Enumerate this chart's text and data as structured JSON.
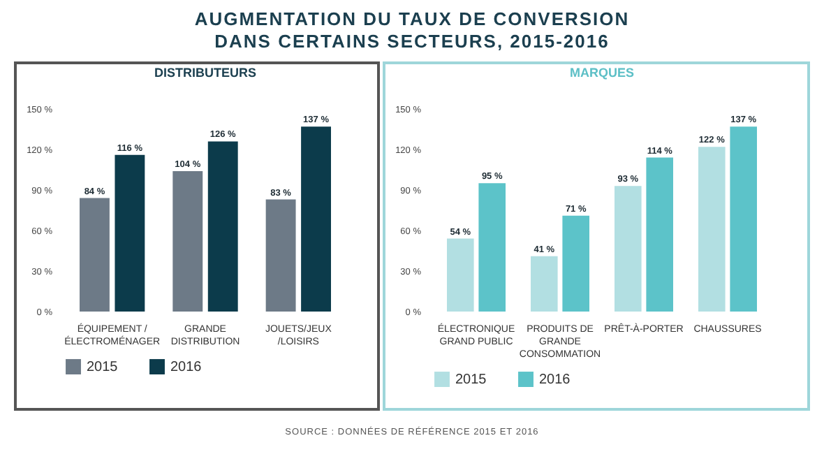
{
  "chart_data": [
    {
      "type": "bar",
      "title": "AUGMENTATION DU TAUX DE CONVERSION\nDANS CERTAINS SECTEURS, 2015-2016",
      "subtitle": "DISTRIBUTEURS",
      "categories": [
        "ÉQUIPEMENT /\nÉLECTROMÉNAGER",
        "GRANDE\nDISTRIBUTION",
        "JOUETS/JEUX\n/LOISIRS"
      ],
      "series": [
        {
          "name": "2015",
          "color": "#6d7a87",
          "values": [
            84,
            104,
            83
          ],
          "value_labels": [
            "84 %",
            "104 %",
            "83 %"
          ]
        },
        {
          "name": "2016",
          "color": "#0c3b4b",
          "values": [
            116,
            126,
            137
          ],
          "value_labels": [
            "116 %",
            "126 %",
            "137 %"
          ]
        }
      ],
      "ylim": [
        0,
        150
      ],
      "yticks": [
        {
          "value": 0,
          "label": "0 %"
        },
        {
          "value": 30,
          "label": "30 %"
        },
        {
          "value": 60,
          "label": "60 %"
        },
        {
          "value": 90,
          "label": "90 %"
        },
        {
          "value": 120,
          "label": "120 %"
        },
        {
          "value": 150,
          "label": "150 %"
        }
      ],
      "legend": "bottom",
      "grid": false
    },
    {
      "type": "bar",
      "subtitle": "MARQUES",
      "categories": [
        "ÉLECTRONIQUE\nGRAND PUBLIC",
        "PRODUITS DE\nGRANDE\nCONSOMMATION",
        "PRÊT-À-PORTER",
        "CHAUSSURES"
      ],
      "series": [
        {
          "name": "2015",
          "color": "#b2dfe2",
          "values": [
            54,
            41,
            93,
            122
          ],
          "value_labels": [
            "54 %",
            "41 %",
            "93 %",
            "122 %"
          ]
        },
        {
          "name": "2016",
          "color": "#5cc3c9",
          "values": [
            95,
            71,
            114,
            137
          ],
          "value_labels": [
            "95 %",
            "71 %",
            "114 %",
            "137 %"
          ]
        }
      ],
      "ylim": [
        0,
        150
      ],
      "yticks": [
        {
          "value": 0,
          "label": "0 %"
        },
        {
          "value": 30,
          "label": "30 %"
        },
        {
          "value": 60,
          "label": "60 %"
        },
        {
          "value": 90,
          "label": "90 %"
        },
        {
          "value": 120,
          "label": "120 %"
        },
        {
          "value": 150,
          "label": "150 %"
        }
      ],
      "legend": "bottom",
      "grid": false,
      "annotations": [
        "SOURCE : DONNÉES DE RÉFÉRENCE 2015 ET 2016"
      ]
    }
  ]
}
